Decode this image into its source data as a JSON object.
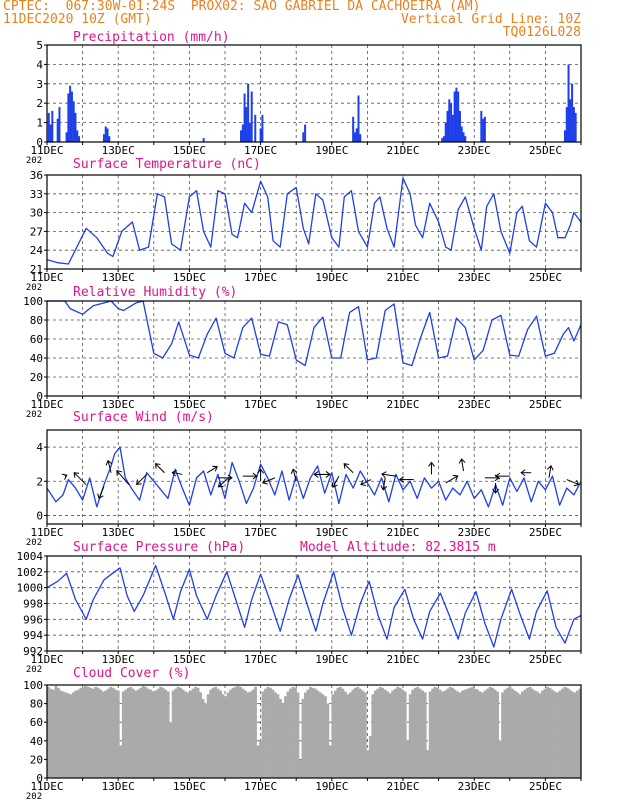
{
  "header": {
    "line1_left": "CPTEC:  067:30W-01:24S  PROX02: SAO GABRIEL DA CACHOEIRA (AM)",
    "line2_left": "11DEC2020 10Z (GMT)",
    "line2_right": "Vertical Grid Line: 10Z",
    "line3_right": "TQ0126L028"
  },
  "colors": {
    "header": "#e8821e",
    "title": "#e0148c",
    "series": "#1f3fe8",
    "bars": "#1f3fe8",
    "cloud": "#aaaaaa",
    "wind_arrow": "#000000"
  },
  "x_ticks": [
    "11DEC",
    "13DEC",
    "15DEC",
    "17DEC",
    "19DEC",
    "21DEC",
    "23DEC",
    "25DEC"
  ],
  "year_fragment": "202",
  "chart_data": [
    {
      "type": "bar",
      "title": "Precipitation (mm/h)",
      "ylim": [
        0,
        5
      ],
      "yticks": [
        "0",
        "1",
        "2",
        "3",
        "4",
        "5"
      ],
      "x": [
        0.05,
        0.1,
        0.15,
        0.3,
        0.35,
        0.55,
        0.6,
        0.65,
        0.7,
        0.75,
        0.8,
        0.85,
        0.9,
        1.6,
        1.65,
        1.7,
        1.75,
        4.4,
        5.45,
        5.5,
        5.55,
        5.6,
        5.65,
        5.7,
        5.75,
        5.85,
        6.0,
        6.05,
        7.2,
        7.25,
        8.6,
        8.65,
        8.7,
        8.75,
        8.8,
        11.1,
        11.15,
        11.2,
        11.25,
        11.3,
        11.35,
        11.4,
        11.45,
        11.5,
        11.55,
        11.6,
        11.65,
        11.7,
        11.75,
        12.2,
        12.25,
        12.3,
        14.55,
        14.6,
        14.65,
        14.7,
        14.75,
        14.8,
        14.85
      ],
      "values": [
        1.5,
        0.9,
        1.6,
        1.2,
        1.8,
        0.5,
        2.5,
        2.9,
        2.6,
        2.1,
        1.5,
        0.6,
        0.3,
        0.4,
        0.8,
        0.7,
        0.3,
        0.2,
        0.6,
        0.9,
        2.5,
        1.8,
        3.0,
        1.0,
        2.6,
        1.4,
        0.7,
        1.4,
        0.5,
        0.9,
        1.3,
        0.5,
        0.7,
        2.4,
        0.4,
        0.2,
        0.3,
        1.0,
        1.6,
        2.2,
        2.0,
        1.4,
        2.6,
        2.8,
        2.6,
        1.6,
        0.8,
        0.5,
        0.3,
        1.6,
        1.2,
        1.3,
        0.6,
        1.8,
        4.0,
        2.2,
        3.0,
        1.8,
        1.5
      ]
    },
    {
      "type": "line",
      "title": "Surface Temperature (nC)",
      "ylim": [
        21,
        36
      ],
      "yticks": [
        "21",
        "24",
        "27",
        "30",
        "33",
        "36"
      ],
      "series": [
        {
          "x": [
            0.0,
            0.3,
            0.6,
            1.1,
            1.4,
            1.7,
            1.85,
            2.1,
            2.4,
            2.6,
            2.85,
            3.1,
            3.3,
            3.5,
            3.75,
            4.0,
            4.2,
            4.4,
            4.6,
            4.8,
            5.0,
            5.2,
            5.35,
            5.55,
            5.75,
            6.0,
            6.2,
            6.35,
            6.55,
            6.75,
            7.0,
            7.2,
            7.35,
            7.55,
            7.75,
            8.0,
            8.2,
            8.35,
            8.55,
            8.75,
            9.0,
            9.2,
            9.35,
            9.55,
            9.75,
            10.0,
            10.2,
            10.35,
            10.55,
            10.75,
            11.0,
            11.2,
            11.35,
            11.55,
            11.75,
            12.0,
            12.2,
            12.35,
            12.55,
            12.75,
            13.0,
            13.2,
            13.35,
            13.55,
            13.75,
            14.0,
            14.2,
            14.35,
            14.55,
            14.7,
            14.8,
            15.0
          ],
          "values": [
            22.5,
            22.0,
            21.8,
            27.5,
            26.0,
            23.5,
            23.0,
            27.0,
            28.5,
            24.0,
            24.5,
            33.0,
            32.5,
            25.0,
            24.0,
            32.5,
            33.5,
            27.0,
            24.5,
            33.5,
            33.0,
            26.5,
            26.0,
            31.5,
            30.0,
            35.0,
            32.5,
            25.5,
            24.5,
            33.0,
            34.0,
            27.5,
            25.0,
            33.0,
            32.0,
            26.0,
            24.5,
            32.5,
            33.5,
            27.0,
            24.5,
            31.5,
            32.5,
            27.5,
            24.5,
            35.5,
            33.0,
            28.0,
            26.0,
            31.5,
            28.5,
            24.5,
            24.0,
            30.5,
            32.5,
            27.5,
            24.0,
            31.0,
            33.0,
            27.0,
            23.5,
            30.0,
            31.0,
            25.5,
            24.5,
            31.5,
            30.0,
            26.0,
            26.0,
            28.0,
            30.0,
            28.5
          ]
        }
      ]
    },
    {
      "type": "line",
      "title": "Relative Humidity (%)",
      "ylim": [
        0,
        100
      ],
      "yticks": [
        "0",
        "20",
        "40",
        "60",
        "80",
        "100"
      ],
      "series": [
        {
          "x": [
            0.0,
            0.5,
            0.65,
            1.0,
            1.3,
            1.5,
            1.8,
            2.0,
            2.15,
            2.5,
            2.7,
            3.0,
            3.25,
            3.5,
            3.7,
            4.0,
            4.25,
            4.5,
            4.75,
            5.0,
            5.25,
            5.5,
            5.75,
            6.0,
            6.25,
            6.5,
            6.75,
            7.0,
            7.25,
            7.5,
            7.75,
            8.0,
            8.25,
            8.5,
            8.75,
            9.0,
            9.25,
            9.5,
            9.75,
            10.0,
            10.25,
            10.5,
            10.75,
            11.0,
            11.25,
            11.5,
            11.75,
            12.0,
            12.25,
            12.5,
            12.75,
            13.0,
            13.25,
            13.5,
            13.75,
            14.0,
            14.25,
            14.5,
            14.65,
            14.8,
            15.0
          ],
          "values": [
            100,
            100,
            92,
            86,
            95,
            97,
            100,
            92,
            90,
            98,
            100,
            45,
            40,
            55,
            78,
            43,
            40,
            65,
            82,
            45,
            40,
            72,
            82,
            44,
            42,
            78,
            75,
            38,
            32,
            72,
            83,
            40,
            40,
            88,
            94,
            38,
            40,
            90,
            97,
            35,
            32,
            62,
            88,
            40,
            42,
            82,
            72,
            38,
            48,
            80,
            85,
            43,
            42,
            70,
            84,
            42,
            45,
            65,
            72,
            58,
            75
          ]
        }
      ]
    },
    {
      "type": "line",
      "title": "Surface Wind (m/s)",
      "ylim": [
        -0.5,
        5
      ],
      "yticks": [
        "0",
        "2",
        "4"
      ],
      "series": [
        {
          "x": [
            0.0,
            0.25,
            0.45,
            0.6,
            0.8,
            1.0,
            1.2,
            1.4,
            1.6,
            1.8,
            1.9,
            2.05,
            2.2,
            2.4,
            2.6,
            2.8,
            3.0,
            3.2,
            3.4,
            3.6,
            3.8,
            4.0,
            4.2,
            4.4,
            4.6,
            4.8,
            5.0,
            5.2,
            5.4,
            5.6,
            5.8,
            6.0,
            6.2,
            6.4,
            6.6,
            6.8,
            7.0,
            7.2,
            7.4,
            7.6,
            7.8,
            8.0,
            8.2,
            8.4,
            8.6,
            8.8,
            9.0,
            9.2,
            9.4,
            9.6,
            9.8,
            10.0,
            10.2,
            10.4,
            10.6,
            10.8,
            11.0,
            11.2,
            11.4,
            11.6,
            11.8,
            12.0,
            12.2,
            12.4,
            12.6,
            12.8,
            13.0,
            13.2,
            13.4,
            13.6,
            13.8,
            14.0,
            14.2,
            14.4,
            14.6,
            14.8,
            15.0
          ],
          "values": [
            1.6,
            0.8,
            1.2,
            2.1,
            1.6,
            0.9,
            2.2,
            0.5,
            1.8,
            2.9,
            3.6,
            4.0,
            2.2,
            1.5,
            0.9,
            2.5,
            2.0,
            1.5,
            1.0,
            2.7,
            1.6,
            0.6,
            2.2,
            2.6,
            1.2,
            2.4,
            1.0,
            3.1,
            2.0,
            0.7,
            1.6,
            3.0,
            2.2,
            1.2,
            2.6,
            0.9,
            2.3,
            1.0,
            2.2,
            2.9,
            1.3,
            2.5,
            0.7,
            2.4,
            1.6,
            2.6,
            1.9,
            1.2,
            2.2,
            0.8,
            2.4,
            1.5,
            2.0,
            1.0,
            2.2,
            1.6,
            2.0,
            0.9,
            1.6,
            1.2,
            2.0,
            1.0,
            1.5,
            0.5,
            1.8,
            0.6,
            2.2,
            1.4,
            2.2,
            0.8,
            2.0,
            1.5,
            2.3,
            0.6,
            1.6,
            1.2,
            2.0
          ]
        }
      ],
      "arrows": [
        {
          "x": 0.5,
          "y": 2.3,
          "dx": 2,
          "dy": -1
        },
        {
          "x": 1.1,
          "y": 1.8,
          "dx": -12,
          "dy": -12
        },
        {
          "x": 1.6,
          "y": 1.7,
          "dx": -5,
          "dy": 12
        },
        {
          "x": 1.8,
          "y": 2.5,
          "dx": -3,
          "dy": -12
        },
        {
          "x": 2.3,
          "y": 1.8,
          "dx": -12,
          "dy": -14
        },
        {
          "x": 2.8,
          "y": 2.4,
          "dx": -10,
          "dy": 10
        },
        {
          "x": 3.3,
          "y": 2.5,
          "dx": -9,
          "dy": -9
        },
        {
          "x": 3.8,
          "y": 2.4,
          "dx": -10,
          "dy": -2
        },
        {
          "x": 4.5,
          "y": 2.5,
          "dx": 10,
          "dy": -6
        },
        {
          "x": 4.8,
          "y": 2.2,
          "dx": 14,
          "dy": 0
        },
        {
          "x": 5.1,
          "y": 2.2,
          "dx": -10,
          "dy": 9
        },
        {
          "x": 5.5,
          "y": 2.3,
          "dx": 14,
          "dy": 0
        },
        {
          "x": 6.0,
          "y": 2.0,
          "dx": 0,
          "dy": -12
        },
        {
          "x": 6.4,
          "y": 2.2,
          "dx": -12,
          "dy": 5
        },
        {
          "x": 7.0,
          "y": 2.0,
          "dx": -3,
          "dy": -12
        },
        {
          "x": 7.5,
          "y": 2.4,
          "dx": 16,
          "dy": 0
        },
        {
          "x": 7.9,
          "y": 2.4,
          "dx": -14,
          "dy": 0
        },
        {
          "x": 8.2,
          "y": 2.3,
          "dx": -6,
          "dy": 11
        },
        {
          "x": 8.6,
          "y": 2.5,
          "dx": -9,
          "dy": -9
        },
        {
          "x": 9.1,
          "y": 2.1,
          "dx": -10,
          "dy": 5
        },
        {
          "x": 9.5,
          "y": 2.2,
          "dx": -2,
          "dy": 12
        },
        {
          "x": 9.8,
          "y": 2.3,
          "dx": -14,
          "dy": -2
        },
        {
          "x": 10.3,
          "y": 2.1,
          "dx": -14,
          "dy": 0
        },
        {
          "x": 10.8,
          "y": 2.4,
          "dx": 0,
          "dy": -12
        },
        {
          "x": 11.2,
          "y": 1.9,
          "dx": 12,
          "dy": -7
        },
        {
          "x": 11.7,
          "y": 2.6,
          "dx": -2,
          "dy": -12
        },
        {
          "x": 12.3,
          "y": 2.2,
          "dx": 14,
          "dy": 0
        },
        {
          "x": 12.6,
          "y": 1.9,
          "dx": 0,
          "dy": 10
        },
        {
          "x": 13.0,
          "y": 2.3,
          "dx": -14,
          "dy": 0
        },
        {
          "x": 13.6,
          "y": 2.5,
          "dx": -10,
          "dy": 0
        },
        {
          "x": 14.1,
          "y": 2.2,
          "dx": 2,
          "dy": -12
        },
        {
          "x": 14.6,
          "y": 2.1,
          "dx": 12,
          "dy": 5
        }
      ]
    },
    {
      "type": "line",
      "title": "Surface Pressure (hPa)",
      "subtitle": "Model Altitude: 82.3815 m",
      "ylim": [
        992,
        1004
      ],
      "yticks": [
        "992",
        "994",
        "996",
        "998",
        "1000",
        "1002",
        "1004"
      ],
      "series": [
        {
          "x": [
            0.0,
            0.3,
            0.55,
            0.8,
            1.1,
            1.3,
            1.6,
            1.9,
            2.05,
            2.25,
            2.45,
            2.7,
            3.05,
            3.3,
            3.55,
            3.75,
            4.0,
            4.2,
            4.5,
            4.75,
            5.05,
            5.3,
            5.55,
            5.75,
            6.0,
            6.25,
            6.55,
            6.8,
            7.05,
            7.3,
            7.55,
            7.75,
            8.05,
            8.3,
            8.55,
            8.8,
            9.05,
            9.3,
            9.55,
            9.75,
            10.05,
            10.3,
            10.55,
            10.75,
            11.05,
            11.3,
            11.55,
            11.75,
            12.05,
            12.3,
            12.55,
            12.75,
            13.05,
            13.3,
            13.55,
            13.75,
            14.05,
            14.3,
            14.55,
            14.8,
            15.0
          ],
          "values": [
            1000,
            1000.8,
            1001.8,
            998.5,
            996,
            998.5,
            1001,
            1002,
            1002.5,
            999,
            997,
            999,
            1002.8,
            999.5,
            996,
            999.5,
            1002.3,
            999,
            996,
            999,
            1002,
            998.5,
            995,
            998.5,
            1001.7,
            998.5,
            994.5,
            998.5,
            1001.6,
            998,
            994.5,
            998,
            1002,
            997.5,
            994,
            998,
            1000.8,
            996.5,
            993.5,
            997.5,
            999.8,
            996,
            993.5,
            997,
            999.3,
            996.5,
            993.5,
            996.8,
            999.5,
            995.5,
            992.5,
            996,
            999.8,
            996.5,
            993.5,
            997,
            999.6,
            995,
            993,
            996,
            996.5
          ]
        }
      ]
    },
    {
      "type": "bar",
      "title": "Cloud Cover (%)",
      "ylim": [
        0,
        100
      ],
      "yticks": [
        "0",
        "20",
        "40",
        "60",
        "80",
        "100"
      ],
      "values": [
        98,
        96,
        95,
        99,
        97,
        94,
        93,
        92,
        91,
        90,
        92,
        94,
        95,
        97,
        98,
        99,
        98,
        97,
        96,
        98,
        97,
        95,
        93,
        94,
        96,
        98,
        97,
        95,
        94,
        35,
        93,
        95,
        97,
        98,
        96,
        94,
        95,
        97,
        99,
        98,
        96,
        95,
        93,
        94,
        96,
        98,
        97,
        95,
        93,
        60,
        94,
        96,
        98,
        97,
        95,
        93,
        92,
        94,
        96,
        98,
        97,
        92,
        85,
        80,
        90,
        95,
        97,
        98,
        96,
        94,
        90,
        88,
        92,
        95,
        97,
        98,
        99,
        98,
        96,
        94,
        92,
        93,
        95,
        98,
        35,
        40,
        93,
        96,
        98,
        97,
        95,
        92,
        90,
        85,
        80,
        88,
        93,
        96,
        98,
        97,
        92,
        20,
        85,
        92,
        95,
        98,
        97,
        96,
        94,
        92,
        90,
        88,
        80,
        35,
        90,
        94,
        97,
        98,
        96,
        93,
        90,
        92,
        95,
        97,
        98,
        96,
        94,
        92,
        30,
        45,
        90,
        94,
        96,
        98,
        97,
        95,
        93,
        91,
        94,
        96,
        98,
        97,
        95,
        93,
        40,
        90,
        95,
        97,
        98,
        96,
        94,
        92,
        30,
        93,
        96,
        98,
        97,
        95,
        93,
        94,
        96,
        98,
        97,
        95,
        93,
        92,
        94,
        95,
        96,
        97,
        98,
        96,
        95,
        93,
        92,
        94,
        96,
        98,
        97,
        95,
        93,
        40,
        92,
        95,
        97,
        98,
        96,
        94,
        92,
        90,
        93,
        95,
        97,
        98,
        96,
        94,
        93,
        91,
        94,
        96,
        98,
        97,
        95,
        93,
        92,
        94,
        96,
        98,
        97,
        95,
        93,
        92,
        94,
        96
      ]
    }
  ]
}
